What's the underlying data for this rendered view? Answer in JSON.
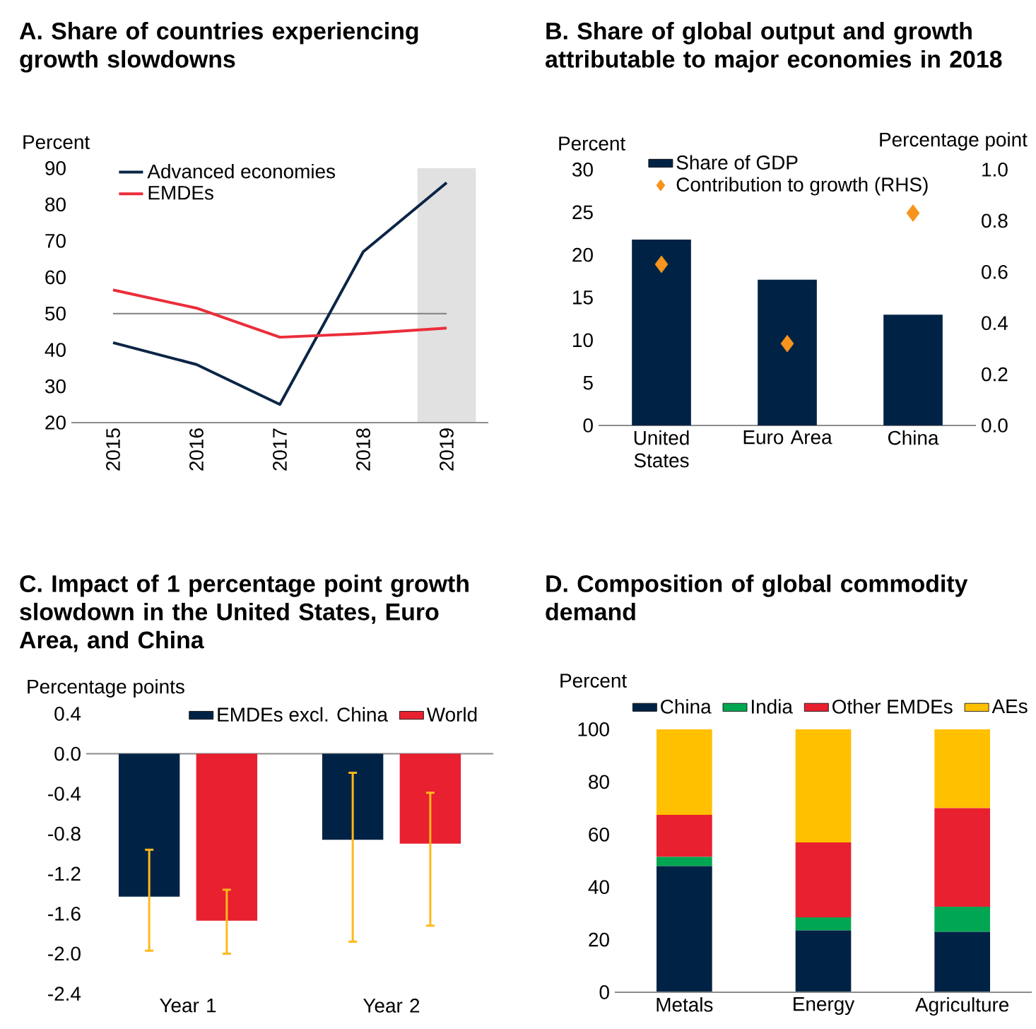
{
  "chart_data": [
    {
      "type": "line",
      "title": "A. Share of countries experiencing growth slowdowns",
      "ylabel": "Percent",
      "categories": [
        "2015",
        "2016",
        "2017",
        "2018",
        "2019"
      ],
      "series": [
        {
          "name": "Advanced economies",
          "color": "#0b2545",
          "values": [
            42,
            36,
            25,
            67,
            86
          ]
        },
        {
          "name": "EMDEs",
          "color": "#ec2d3a",
          "values": [
            56.5,
            51.5,
            43.5,
            44.5,
            46
          ]
        }
      ],
      "ylim": [
        20,
        90
      ],
      "yticks": [
        20,
        30,
        40,
        50,
        60,
        70,
        80,
        90
      ],
      "ref_lines": [
        {
          "axis": "y",
          "value": 50,
          "color": "#7f7f7f"
        }
      ],
      "bands": [
        {
          "axis": "x",
          "from": "2019",
          "to": "2019",
          "color": "#e1e1e1"
        }
      ],
      "legend": "top left"
    },
    {
      "type": "bar",
      "title": "B. Share of global output and growth attributable to major economies in 2018",
      "ylabel": "Percent",
      "y2label": "Percentage point",
      "categories": [
        "United States",
        "Euro Area",
        "China"
      ],
      "series": [
        {
          "name": "Share of GDP",
          "color": "#002345",
          "values": [
            21.8,
            17.1,
            13.0
          ]
        },
        {
          "name": "Contribution to growth (RHS)",
          "type": "scatter",
          "axis": "y2",
          "marker": "diamond",
          "color": "#f7941d",
          "values": [
            0.63,
            0.32,
            0.83
          ]
        }
      ],
      "ylim": [
        0,
        30
      ],
      "yticks": [
        0,
        5,
        10,
        15,
        20,
        25,
        30
      ],
      "y2lim": [
        0,
        1
      ],
      "y2ticks": [
        {
          "value": 0,
          "label": "0.0"
        },
        0.2,
        0.4,
        0.6,
        0.8,
        {
          "value": 1,
          "label": "1.0"
        }
      ],
      "legend": "top left"
    },
    {
      "type": "bar",
      "title": "C. Impact of 1 percentage point growth slowdown in the United States, Euro Area, and China",
      "ylabel": "Percentage points",
      "categories": [
        "Year 1",
        "Year 2"
      ],
      "series": [
        {
          "name": "EMDEs excl. China",
          "color": "#002345",
          "values": [
            -1.43,
            -0.86
          ],
          "errors": [
            [
              -1.97,
              -0.96
            ],
            [
              -1.88,
              -0.19
            ]
          ]
        },
        {
          "name": "World",
          "color": "#e8202f",
          "values": [
            -1.67,
            -0.9
          ],
          "errors": [
            [
              -2.0,
              -1.36
            ],
            [
              -1.72,
              -0.39
            ]
          ]
        }
      ],
      "ylim": [
        -2.4,
        0.4
      ],
      "yticks": [
        -2.4,
        {
          "value": -2.0,
          "label": "-2.0"
        },
        -1.6,
        -1.2,
        -0.8,
        -0.4,
        {
          "value": 0,
          "label": "0.0"
        },
        0.4
      ],
      "legend": "top right"
    },
    {
      "type": "bar",
      "title": "D. Composition of global commodity demand",
      "ylabel": "Percent",
      "stacked": true,
      "categories": [
        "Metals",
        "Energy",
        "Agriculture"
      ],
      "series": [
        {
          "name": "China",
          "color": "#002345",
          "values": [
            48,
            23.5,
            23
          ]
        },
        {
          "name": "India",
          "color": "#00a651",
          "values": [
            3.5,
            5,
            9.5
          ]
        },
        {
          "name": "Other EMDEs",
          "color": "#e8202f",
          "values": [
            16,
            28.5,
            37.5
          ]
        },
        {
          "name": "AEs",
          "color": "#ffc000",
          "values": [
            32.5,
            43,
            30
          ]
        }
      ],
      "ylim": [
        0,
        100
      ],
      "yticks": [
        0,
        20,
        40,
        60,
        80,
        100
      ],
      "legend": "top"
    }
  ]
}
